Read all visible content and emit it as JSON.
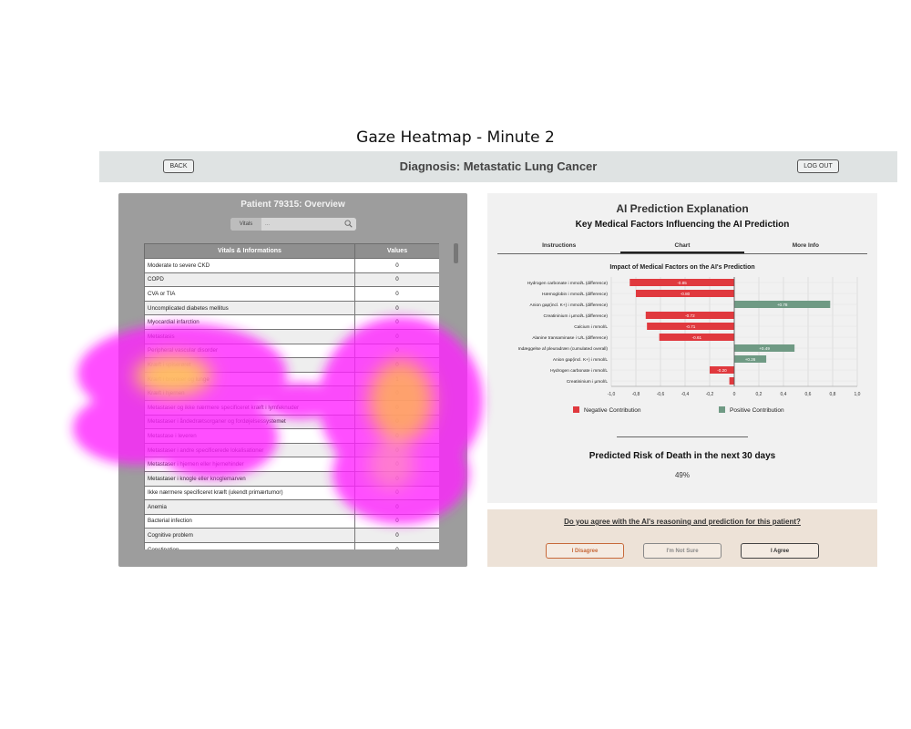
{
  "figure": {
    "title": "Gaze Heatmap - Minute 2"
  },
  "header": {
    "back_label": "BACK",
    "title": "Diagnosis: Metastatic Lung Cancer",
    "logout_label": "LOG OUT"
  },
  "patient": {
    "title": "Patient 79315: Overview",
    "search": {
      "category": "Vitals",
      "placeholder": "..."
    },
    "table": {
      "headers": [
        "Vitals & Informations",
        "Values"
      ],
      "rows": [
        [
          "Moderate to severe CKD",
          "0"
        ],
        [
          "COPD",
          "0"
        ],
        [
          "CVA or TIA",
          "0"
        ],
        [
          "Uncomplicated diabetes mellitus",
          "0"
        ],
        [
          "Myocardial infarction",
          "0"
        ],
        [
          "Metastasis",
          "0"
        ],
        [
          "Peripheral vascular disorder",
          "0"
        ],
        [
          "Kræft i spiserøret",
          "0"
        ],
        [
          "Kræft i bronkier og lunge",
          "1"
        ],
        [
          "Kræft i hjernen",
          "0"
        ],
        [
          "Metastaser og ikke nærmere specificeret kræft i lymfeknuder",
          "0"
        ],
        [
          "Metastaser i åndedrætsorganer og fordøjelsessystemet",
          "0"
        ],
        [
          "Metastase i leveren",
          "0"
        ],
        [
          "Metastaser i andre specificerede lokalisationer",
          "0"
        ],
        [
          "Metastaser i hjernen eller hjernehinder",
          "0"
        ],
        [
          "Metastaser i knogle eller knoglemarven",
          "0"
        ],
        [
          "Ikke nærmere specificeret kræft (ukendt primærtumor)",
          "0"
        ],
        [
          "Anemia",
          "0"
        ],
        [
          "Bacterial infection",
          "0"
        ],
        [
          "Cognitive problem",
          "0"
        ],
        [
          "Constipation",
          "0"
        ]
      ]
    }
  },
  "ai": {
    "title": "AI Prediction Explanation",
    "subtitle": "Key Medical Factors Influencing the AI Prediction",
    "tabs": [
      "Instructions",
      "Chart",
      "More Info"
    ],
    "active_tab": "Chart",
    "risk_title": "Predicted Risk of Death in the next 30 days",
    "risk_value": "49%"
  },
  "chart_data": {
    "type": "bar",
    "orientation": "horizontal",
    "title": "Impact of Medical Factors on the AI's Prediction",
    "categories": [
      "Hydrogen carbonate i mmol/L (difference)",
      "Hæmoglobin i mmol/L (difference)",
      "Anion gap(incl. K+) i mmol/L (difference)",
      "Creatininium i µmol/L (difference)",
      "Calcium i mmol/L",
      "Alanine transaminase i U/L (difference)",
      "Indæggelse af pleuradræn (cumulated overall)",
      "Anion gap(incl. K+) i mmol/L",
      "Hydrogen carbonate i mmol/L",
      "Creatininium i µmol/L"
    ],
    "values": [
      -0.85,
      -0.8,
      0.78,
      -0.72,
      -0.71,
      -0.61,
      0.49,
      0.26,
      -0.2,
      -0.04
    ],
    "value_labels": [
      "-0.85",
      "-0.80",
      "+0.78",
      "-0.72",
      "-0.71",
      "-0.61",
      "+0.49",
      "+0.26",
      "-0.20",
      ""
    ],
    "xlim": [
      -1.0,
      1.0
    ],
    "xticks": [
      "-1,0",
      "-0,8",
      "-0,6",
      "-0,4",
      "-0,2",
      "0",
      "0,2",
      "0,4",
      "0,6",
      "0,8",
      "1,0"
    ],
    "grid": true,
    "legend": {
      "placement": "bottom",
      "negative": "Negative Contribution",
      "positive": "Positive Contribution"
    },
    "colors": {
      "negative": "#e0393e",
      "positive": "#6f9a84"
    }
  },
  "agreement": {
    "question": "Do you agree with the AI's reasoning and prediction for this patient?",
    "disagree_label": "I Disagree",
    "notsure_label": "I'm Not Sure",
    "agree_label": "I Agree"
  }
}
